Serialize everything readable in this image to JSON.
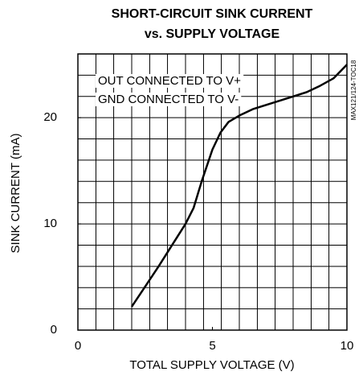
{
  "chart_data": {
    "type": "line",
    "title": [
      "SHORT-CIRCUIT SINK CURRENT",
      "vs. SUPPLY VOLTAGE"
    ],
    "xlabel": "TOTAL SUPPLY VOLTAGE (V)",
    "ylabel": "SINK CURRENT (mA)",
    "annotations": [
      "OUT CONNECTED TO V+",
      "GND CONNECTED TO V-"
    ],
    "figure_id": "MAX121/124-TOC18",
    "x": [
      2,
      2.5,
      3,
      3.5,
      4,
      4.3,
      4.6,
      5,
      5.3,
      5.6,
      6,
      6.5,
      7,
      7.5,
      8,
      8.5,
      9,
      9.5,
      10
    ],
    "series": [
      {
        "name": "sink current",
        "color": "#000000",
        "values": [
          2.2,
          4.1,
          6,
          8,
          10,
          11.5,
          14,
          17,
          18.6,
          19.6,
          20.2,
          20.8,
          21.2,
          21.6,
          22,
          22.4,
          23,
          23.7,
          25
        ]
      }
    ],
    "xlim": [
      0,
      10
    ],
    "ylim": [
      0,
      26
    ],
    "xticks": [
      0,
      5,
      10
    ],
    "yticks": [
      0,
      10,
      20
    ],
    "xgrid": [
      0.67,
      1.33,
      2,
      2.67,
      3.33,
      4,
      4.67,
      5.33,
      6,
      6.67,
      7.33,
      8,
      8.67,
      9.33
    ],
    "ygrid": [
      2,
      4,
      6,
      8,
      10,
      12,
      14,
      16,
      18,
      20,
      22,
      24
    ],
    "grid": true
  }
}
